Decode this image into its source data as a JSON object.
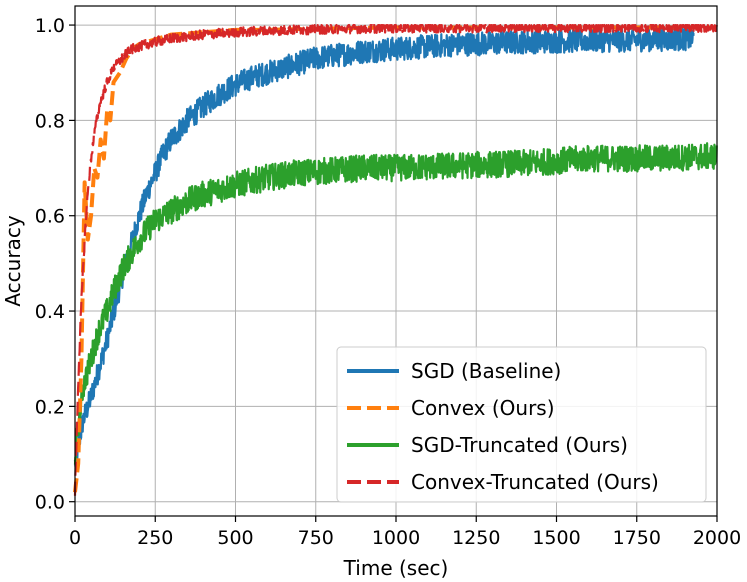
{
  "chart_data": {
    "type": "line",
    "title": "",
    "xlabel": "Time (sec)",
    "ylabel": "Accuracy",
    "xlim": [
      0,
      2000
    ],
    "ylim": [
      -0.03,
      1.04
    ],
    "xticks": [
      0,
      250,
      500,
      750,
      1000,
      1250,
      1500,
      1750,
      2000
    ],
    "yticks": [
      0.0,
      0.2,
      0.4,
      0.6,
      0.8,
      1.0
    ],
    "xtick_labels": [
      "0",
      "250",
      "500",
      "750",
      "1000",
      "1250",
      "1500",
      "1750",
      "2000"
    ],
    "ytick_labels": [
      "0.0",
      "0.2",
      "0.4",
      "0.6",
      "0.8",
      "1.0"
    ],
    "grid": true,
    "legend_position": "bottom-right",
    "series": [
      {
        "name": "SGD (Baseline)",
        "color": "#1f77b4",
        "style": "solid",
        "noise": 0.025,
        "x": [
          0,
          25,
          50,
          75,
          100,
          125,
          150,
          175,
          200,
          225,
          250,
          275,
          300,
          350,
          400,
          450,
          500,
          550,
          600,
          650,
          700,
          750,
          800,
          850,
          900,
          1000,
          1100,
          1200,
          1300,
          1400,
          1500,
          1600,
          1700,
          1800,
          1930
        ],
        "y": [
          0.08,
          0.17,
          0.22,
          0.28,
          0.34,
          0.41,
          0.48,
          0.54,
          0.6,
          0.65,
          0.69,
          0.73,
          0.76,
          0.8,
          0.83,
          0.855,
          0.875,
          0.89,
          0.9,
          0.91,
          0.92,
          0.93,
          0.935,
          0.94,
          0.945,
          0.95,
          0.955,
          0.96,
          0.962,
          0.965,
          0.966,
          0.968,
          0.968,
          0.97,
          0.972
        ]
      },
      {
        "name": "Convex (Ours)",
        "color": "#ff7f0e",
        "style": "dashed",
        "noise": 0.0,
        "x": [
          0,
          10,
          20,
          30,
          40,
          50,
          60,
          70,
          80,
          90,
          100,
          110,
          120,
          140,
          160,
          180,
          200,
          250,
          300,
          400,
          500,
          600,
          800,
          1000,
          1500,
          2000
        ],
        "y": [
          0.02,
          0.08,
          0.3,
          0.67,
          0.55,
          0.6,
          0.7,
          0.68,
          0.76,
          0.72,
          0.82,
          0.8,
          0.88,
          0.9,
          0.93,
          0.95,
          0.96,
          0.97,
          0.98,
          0.985,
          0.99,
          0.99,
          0.993,
          0.995,
          0.995,
          0.995
        ]
      },
      {
        "name": "SGD-Truncated (Ours)",
        "color": "#2ca02c",
        "style": "solid",
        "noise": 0.028,
        "x": [
          0,
          25,
          50,
          75,
          100,
          125,
          150,
          175,
          200,
          250,
          300,
          350,
          400,
          450,
          500,
          600,
          700,
          800,
          900,
          1000,
          1200,
          1400,
          1600,
          1800,
          2000
        ],
        "y": [
          0.1,
          0.24,
          0.3,
          0.36,
          0.4,
          0.45,
          0.49,
          0.52,
          0.55,
          0.59,
          0.61,
          0.63,
          0.645,
          0.655,
          0.665,
          0.68,
          0.69,
          0.695,
          0.7,
          0.7,
          0.705,
          0.71,
          0.72,
          0.72,
          0.725
        ]
      },
      {
        "name": "Convex-Truncated (Ours)",
        "color": "#d62728",
        "style": "dashed",
        "noise": 0.01,
        "x": [
          0,
          10,
          20,
          30,
          40,
          50,
          60,
          70,
          80,
          90,
          100,
          110,
          120,
          140,
          160,
          180,
          200,
          250,
          300,
          400,
          500,
          600,
          800,
          1000,
          1500,
          2000
        ],
        "y": [
          0.02,
          0.25,
          0.42,
          0.55,
          0.65,
          0.72,
          0.77,
          0.81,
          0.84,
          0.86,
          0.88,
          0.895,
          0.91,
          0.925,
          0.94,
          0.95,
          0.955,
          0.965,
          0.972,
          0.98,
          0.985,
          0.988,
          0.992,
          0.994,
          0.995,
          0.995
        ]
      }
    ]
  }
}
